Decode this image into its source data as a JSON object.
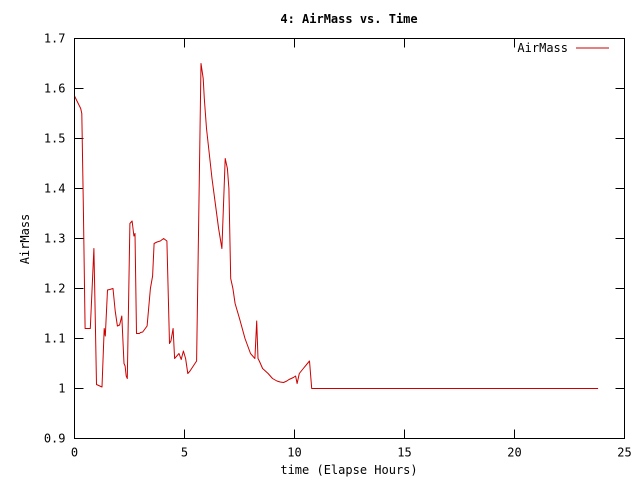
{
  "chart_data": {
    "type": "line",
    "title": "4: AirMass vs. Time",
    "xlabel": "time (Elapse Hours)",
    "ylabel": "AirMass",
    "xlim": [
      0,
      25
    ],
    "ylim": [
      0.9,
      1.7
    ],
    "xticks": [
      "0",
      "5",
      "10",
      "15",
      "20",
      "25"
    ],
    "yticks": [
      "0.9",
      "1",
      "1.1",
      "1.2",
      "1.3",
      "1.4",
      "1.5",
      "1.6",
      "1.7"
    ],
    "grid": false,
    "legend": "top-right",
    "series": [
      {
        "name": "AirMass",
        "color": "#cc0000",
        "x": [
          0.0,
          0.28,
          0.33,
          0.4,
          0.48,
          0.72,
          0.8,
          0.88,
          0.92,
          1.0,
          1.15,
          1.25,
          1.35,
          1.4,
          1.5,
          1.6,
          1.75,
          1.85,
          1.95,
          2.05,
          2.15,
          2.25,
          2.3,
          2.35,
          2.4,
          2.52,
          2.62,
          2.7,
          2.75,
          2.82,
          2.88,
          2.95,
          3.0,
          3.1,
          3.3,
          3.45,
          3.55,
          3.62,
          3.75,
          3.9,
          4.05,
          4.2,
          4.32,
          4.38,
          4.48,
          4.55,
          4.65,
          4.75,
          4.85,
          4.95,
          5.05,
          5.15,
          5.25,
          5.4,
          5.55,
          5.65,
          5.75,
          5.85,
          5.9,
          6.0,
          6.1,
          6.25,
          6.4,
          6.55,
          6.7,
          6.85,
          6.95,
          7.02,
          7.1,
          7.2,
          7.3,
          7.5,
          7.75,
          8.0,
          8.2,
          8.28,
          8.34,
          8.4,
          8.55,
          8.8,
          9.0,
          9.2,
          9.35,
          9.5,
          9.65,
          9.75,
          9.85,
          9.95,
          10.05,
          10.12,
          10.22,
          10.4,
          10.55,
          10.68,
          10.78,
          11.0,
          12.0,
          14.0,
          16.0,
          18.0,
          20.0,
          22.0,
          23.8
        ],
        "values": [
          1.585,
          1.56,
          1.55,
          1.37,
          1.12,
          1.12,
          1.2,
          1.28,
          1.2,
          1.008,
          1.005,
          1.003,
          1.12,
          1.105,
          1.197,
          1.198,
          1.2,
          1.155,
          1.125,
          1.127,
          1.145,
          1.05,
          1.045,
          1.025,
          1.02,
          1.33,
          1.335,
          1.305,
          1.31,
          1.11,
          1.11,
          1.11,
          1.112,
          1.113,
          1.125,
          1.2,
          1.225,
          1.29,
          1.293,
          1.295,
          1.3,
          1.295,
          1.09,
          1.095,
          1.12,
          1.06,
          1.065,
          1.07,
          1.058,
          1.075,
          1.06,
          1.03,
          1.035,
          1.045,
          1.055,
          1.35,
          1.65,
          1.62,
          1.58,
          1.52,
          1.48,
          1.42,
          1.37,
          1.32,
          1.28,
          1.46,
          1.44,
          1.4,
          1.22,
          1.2,
          1.17,
          1.14,
          1.1,
          1.07,
          1.06,
          1.135,
          1.06,
          1.055,
          1.04,
          1.03,
          1.02,
          1.015,
          1.013,
          1.012,
          1.015,
          1.018,
          1.02,
          1.022,
          1.025,
          1.01,
          1.03,
          1.04,
          1.048,
          1.055,
          1.0,
          1.0,
          1.0,
          1.0,
          1.0,
          1.0,
          1.0,
          1.0,
          1.0
        ]
      }
    ]
  }
}
